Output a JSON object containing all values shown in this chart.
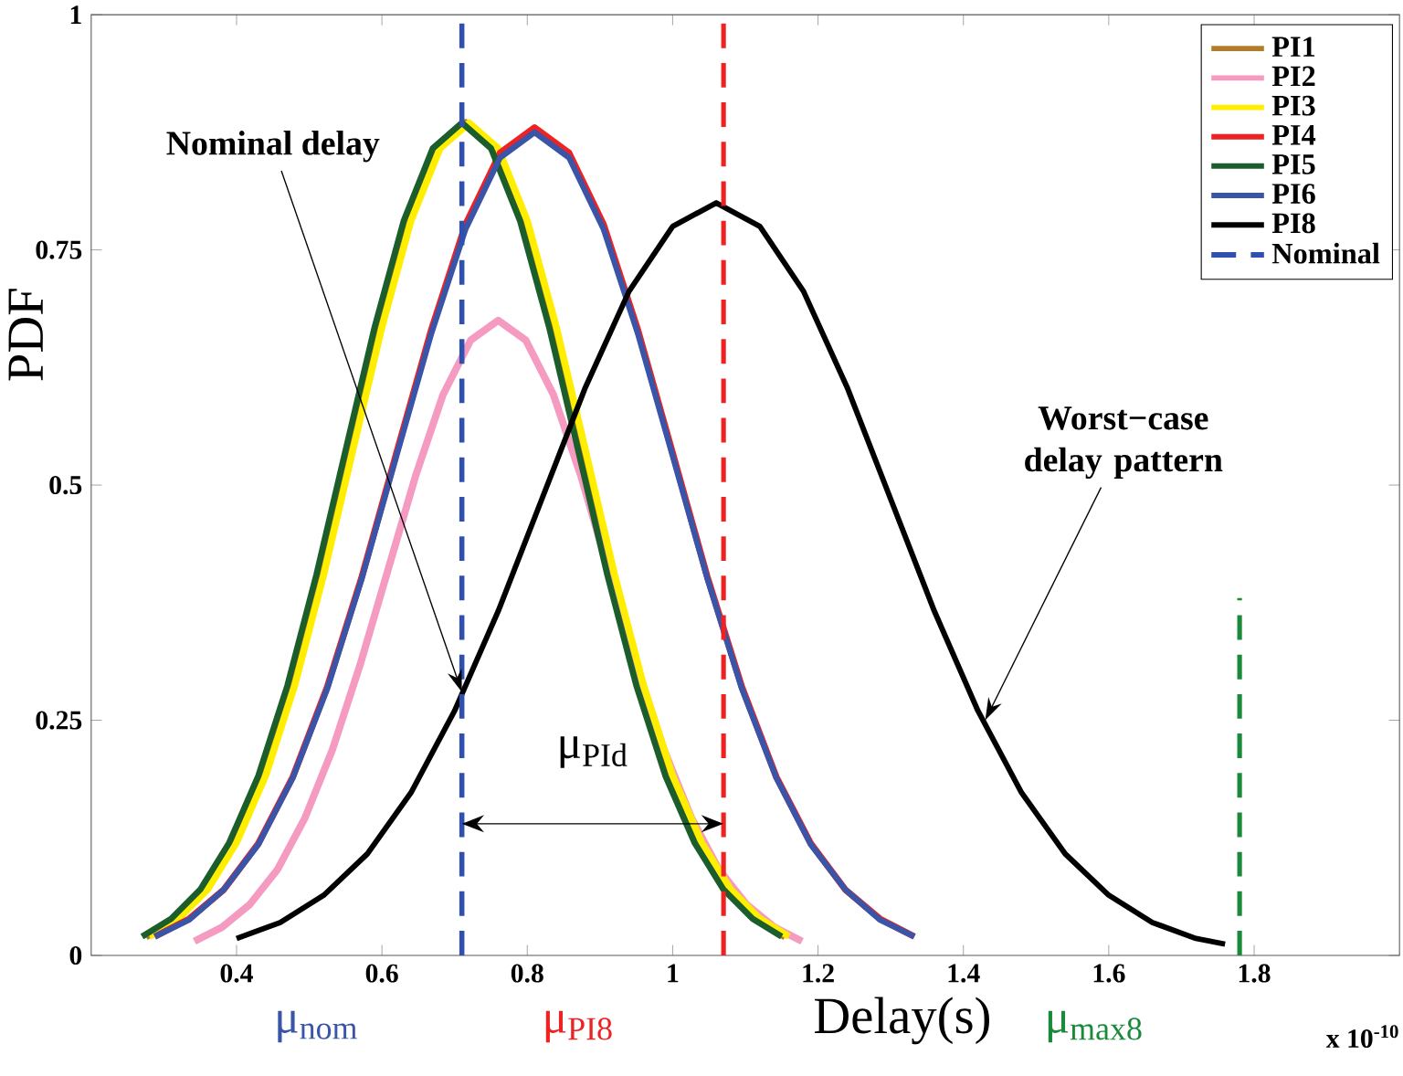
{
  "chart_data": {
    "type": "line",
    "xlabel": "Delay(s)",
    "ylabel": "PDF",
    "xlim": [
      0.2,
      2.0
    ],
    "ylim": [
      0,
      1
    ],
    "xticks": [
      0.4,
      0.6,
      0.8,
      1,
      1.2,
      1.4,
      1.6,
      1.8
    ],
    "yticks": [
      0,
      0.25,
      0.5,
      0.75,
      1
    ],
    "legend": "top right",
    "grid": false,
    "marker": "none",
    "series": [
      {
        "name": "PI1",
        "color": "#b07d2b",
        "x": [
          0.275,
          0.315,
          0.355,
          0.395,
          0.435,
          0.475,
          0.515,
          0.555,
          0.595,
          0.635,
          0.675,
          0.715,
          0.755,
          0.795,
          0.835,
          0.875,
          0.915,
          0.955,
          0.995,
          1.035,
          1.075,
          1.115,
          1.155
        ],
        "values": [
          0.02,
          0.039,
          0.07,
          0.12,
          0.191,
          0.287,
          0.405,
          0.537,
          0.668,
          0.781,
          0.858,
          0.885,
          0.858,
          0.781,
          0.668,
          0.537,
          0.405,
          0.287,
          0.191,
          0.12,
          0.07,
          0.039,
          0.02
        ]
      },
      {
        "name": "PI2",
        "color": "#f59ac0",
        "x": [
          0.342,
          0.38,
          0.418,
          0.456,
          0.494,
          0.532,
          0.57,
          0.608,
          0.646,
          0.684,
          0.722,
          0.76,
          0.798,
          0.836,
          0.874,
          0.912,
          0.95,
          0.988,
          1.026,
          1.064,
          1.102,
          1.14,
          1.178
        ],
        "values": [
          0.015,
          0.03,
          0.054,
          0.091,
          0.146,
          0.219,
          0.309,
          0.409,
          0.509,
          0.596,
          0.654,
          0.675,
          0.654,
          0.596,
          0.509,
          0.409,
          0.309,
          0.219,
          0.146,
          0.091,
          0.054,
          0.03,
          0.015
        ]
      },
      {
        "name": "PI3",
        "color": "#ffee00",
        "x": [
          0.28,
          0.32,
          0.36,
          0.4,
          0.44,
          0.48,
          0.52,
          0.56,
          0.6,
          0.64,
          0.68,
          0.72,
          0.76,
          0.8,
          0.84,
          0.88,
          0.92,
          0.96,
          1.0,
          1.04,
          1.08,
          1.12,
          1.16
        ],
        "values": [
          0.02,
          0.039,
          0.07,
          0.12,
          0.191,
          0.287,
          0.405,
          0.537,
          0.668,
          0.781,
          0.858,
          0.885,
          0.858,
          0.781,
          0.668,
          0.537,
          0.405,
          0.287,
          0.191,
          0.12,
          0.07,
          0.039,
          0.02
        ]
      },
      {
        "name": "PI4",
        "color": "#ee2222",
        "x": [
          0.2875,
          0.335,
          0.3825,
          0.43,
          0.4775,
          0.525,
          0.5725,
          0.62,
          0.6675,
          0.715,
          0.7625,
          0.81,
          0.8575,
          0.905,
          0.9525,
          1.0,
          1.0475,
          1.095,
          1.1425,
          1.19,
          1.2375,
          1.285,
          1.3325
        ],
        "values": [
          0.02,
          0.039,
          0.07,
          0.119,
          0.19,
          0.286,
          0.403,
          0.534,
          0.664,
          0.777,
          0.853,
          0.88,
          0.853,
          0.777,
          0.664,
          0.534,
          0.403,
          0.286,
          0.19,
          0.119,
          0.07,
          0.039,
          0.02
        ]
      },
      {
        "name": "PI5",
        "color": "#1b5e2b",
        "x": [
          0.27,
          0.31,
          0.35,
          0.39,
          0.43,
          0.47,
          0.51,
          0.55,
          0.59,
          0.63,
          0.67,
          0.71,
          0.75,
          0.79,
          0.83,
          0.87,
          0.91,
          0.95,
          0.99,
          1.03,
          1.07,
          1.11,
          1.15
        ],
        "values": [
          0.02,
          0.039,
          0.07,
          0.12,
          0.191,
          0.287,
          0.405,
          0.537,
          0.668,
          0.781,
          0.858,
          0.885,
          0.858,
          0.781,
          0.668,
          0.537,
          0.405,
          0.287,
          0.191,
          0.12,
          0.07,
          0.039,
          0.02
        ]
      },
      {
        "name": "PI6",
        "color": "#3a55a8",
        "x": [
          0.2875,
          0.335,
          0.3825,
          0.43,
          0.4775,
          0.525,
          0.5725,
          0.62,
          0.6675,
          0.715,
          0.7625,
          0.81,
          0.8575,
          0.905,
          0.9525,
          1.0,
          1.0475,
          1.095,
          1.1425,
          1.19,
          1.2375,
          1.285,
          1.3325
        ],
        "values": [
          0.02,
          0.038,
          0.07,
          0.118,
          0.189,
          0.284,
          0.401,
          0.531,
          0.66,
          0.772,
          0.848,
          0.875,
          0.848,
          0.772,
          0.66,
          0.531,
          0.401,
          0.284,
          0.189,
          0.118,
          0.07,
          0.038,
          0.02
        ]
      },
      {
        "name": "PI8",
        "color": "#000000",
        "x": [
          0.4,
          0.46,
          0.52,
          0.58,
          0.64,
          0.7,
          0.76,
          0.82,
          0.88,
          0.94,
          1.0,
          1.06,
          1.12,
          1.18,
          1.24,
          1.3,
          1.36,
          1.42,
          1.48,
          1.54,
          1.6,
          1.66,
          1.72,
          1.76
        ],
        "values": [
          0.018,
          0.035,
          0.064,
          0.108,
          0.173,
          0.26,
          0.366,
          0.485,
          0.604,
          0.706,
          0.775,
          0.8,
          0.775,
          0.706,
          0.604,
          0.485,
          0.366,
          0.26,
          0.173,
          0.108,
          0.064,
          0.035,
          0.018,
          0.012
        ]
      },
      {
        "name": "Nominal",
        "color": "#3050b0",
        "line_style": "dashed",
        "x": [
          0.71,
          0.71
        ],
        "values": [
          0,
          1
        ]
      },
      {
        "color": "#1a8a3a",
        "line_style": "dashed",
        "x": [
          1.78,
          1.78
        ],
        "values": [
          0,
          0.38
        ]
      }
    ],
    "ref_lines": [
      {
        "axis": "x",
        "value": 1.07,
        "color": "#ee2222",
        "line_style": "dashed"
      }
    ],
    "annotations": [
      {
        "text": "Nominal delay",
        "x": 0.71,
        "y": 0.28
      },
      {
        "text": "Worst−case delay pattern",
        "x": 1.43,
        "y": 0.25
      },
      "μ$_{PId}$",
      {
        "text": "μ$_{nom}$",
        "x": 0.71,
        "y": 0
      },
      {
        "text": "μ$_{PI8}$",
        "x": 1.07,
        "y": 0
      },
      {
        "text": "μ$_{max8}$",
        "x": 1.78,
        "y": 0
      },
      "x 10$^{-10}$"
    ]
  }
}
